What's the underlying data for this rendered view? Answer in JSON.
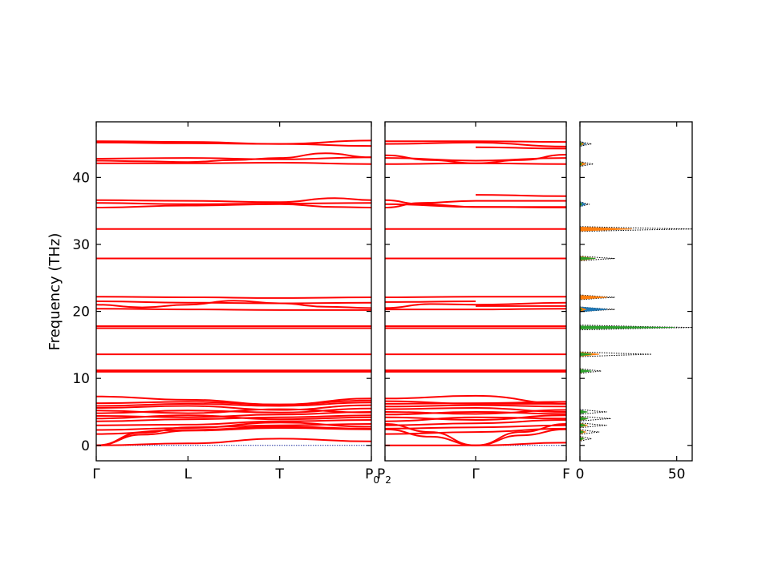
{
  "chart_data": {
    "type": "line",
    "ylabel": "Frequency (THz)",
    "ylim": [
      -2.3,
      48.3
    ],
    "yticks": [
      0,
      10,
      20,
      30,
      40
    ],
    "panels": [
      {
        "name": "band-path-1",
        "xlim": [
          0,
          3
        ],
        "xticks": [
          {
            "pos": 0,
            "label": "Γ"
          },
          {
            "pos": 1,
            "label": "L"
          },
          {
            "pos": 2,
            "label": "T"
          },
          {
            "pos": 3,
            "label": "P",
            "sub": "0"
          }
        ],
        "flat_bands": [
          11.2,
          11.0,
          13.6,
          17.5,
          17.8,
          27.9,
          32.3
        ],
        "dispersive_bands": [
          {
            "x": [
              0,
              1,
              2,
              3
            ],
            "y": [
              45.4,
              45.3,
              45.0,
              45.5
            ]
          },
          {
            "x": [
              0,
              1,
              2,
              3
            ],
            "y": [
              45.2,
              45.1,
              45.0,
              44.7
            ]
          },
          {
            "x": [
              0,
              1,
              2,
              3
            ],
            "y": [
              42.8,
              42.9,
              42.7,
              43.0
            ]
          },
          {
            "x": [
              0,
              0.5,
              1,
              1.5,
              2,
              2.5,
              3
            ],
            "y": [
              42.5,
              42.4,
              42.3,
              42.6,
              42.9,
              43.6,
              43.0
            ]
          },
          {
            "x": [
              0,
              1,
              2,
              3
            ],
            "y": [
              42.1,
              42.1,
              42.2,
              42.0
            ]
          },
          {
            "x": [
              0,
              1,
              2,
              2.6,
              3
            ],
            "y": [
              36.6,
              36.5,
              36.3,
              36.9,
              36.6
            ]
          },
          {
            "x": [
              0,
              1,
              2,
              3
            ],
            "y": [
              36.2,
              36.0,
              36.1,
              36.2
            ]
          },
          {
            "x": [
              0,
              1,
              2,
              2.6,
              3
            ],
            "y": [
              35.5,
              35.8,
              36.0,
              35.6,
              35.5
            ]
          },
          {
            "x": [
              0,
              1,
              2,
              3
            ],
            "y": [
              22.2,
              22.1,
              22.0,
              22.1
            ]
          },
          {
            "x": [
              0,
              1,
              2,
              3
            ],
            "y": [
              21.5,
              21.3,
              21.2,
              21.3
            ]
          },
          {
            "x": [
              0,
              0.5,
              1,
              1.5,
              2,
              2.5,
              3
            ],
            "y": [
              21.0,
              20.6,
              21.0,
              21.6,
              21.2,
              20.7,
              20.5
            ]
          },
          {
            "x": [
              0,
              1,
              2,
              3
            ],
            "y": [
              20.4,
              20.3,
              20.2,
              20.2
            ]
          },
          {
            "x": [
              0,
              1,
              2,
              3
            ],
            "y": [
              0,
              0.3,
              1.0,
              0.6
            ]
          },
          {
            "x": [
              0,
              0.5,
              1,
              2,
              3
            ],
            "y": [
              0,
              1.6,
              2.2,
              2.6,
              2.4
            ]
          },
          {
            "x": [
              0,
              0.5,
              1,
              2,
              3
            ],
            "y": [
              0,
              1.9,
              2.7,
              3.0,
              3.2
            ]
          },
          {
            "x": [
              0,
              1,
              2,
              3
            ],
            "y": [
              1.7,
              2.3,
              2.8,
              2.5
            ]
          },
          {
            "x": [
              0,
              1,
              2,
              3
            ],
            "y": [
              2.3,
              2.6,
              3.4,
              2.8
            ]
          },
          {
            "x": [
              0,
              1,
              2,
              3
            ],
            "y": [
              3.0,
              3.1,
              3.6,
              3.8
            ]
          },
          {
            "x": [
              0,
              1,
              2,
              3
            ],
            "y": [
              3.6,
              3.9,
              4.2,
              4.5
            ]
          },
          {
            "x": [
              0,
              1,
              2,
              3
            ],
            "y": [
              4.0,
              4.5,
              3.9,
              4.2
            ]
          },
          {
            "x": [
              0,
              1,
              2,
              3
            ],
            "y": [
              4.4,
              4.2,
              4.6,
              5.0
            ]
          },
          {
            "x": [
              0,
              1,
              2,
              3
            ],
            "y": [
              4.8,
              5.2,
              4.9,
              5.5
            ]
          },
          {
            "x": [
              0,
              1,
              2,
              3
            ],
            "y": [
              5.2,
              4.8,
              5.4,
              4.9
            ]
          },
          {
            "x": [
              0,
              1,
              2,
              3
            ],
            "y": [
              5.6,
              5.9,
              5.3,
              6.0
            ]
          },
          {
            "x": [
              0,
              1,
              2,
              3
            ],
            "y": [
              5.9,
              6.2,
              5.9,
              6.4
            ]
          },
          {
            "x": [
              0,
              1,
              2,
              3
            ],
            "y": [
              6.3,
              6.5,
              6.1,
              6.7
            ]
          },
          {
            "x": [
              0,
              1,
              2,
              3
            ],
            "y": [
              7.3,
              6.8,
              6.1,
              7.0
            ]
          }
        ]
      },
      {
        "name": "band-path-2",
        "xlim": [
          0,
          2
        ],
        "xticks": [
          {
            "pos": 0,
            "label": "P",
            "sub": "2"
          },
          {
            "pos": 1,
            "label": "Γ"
          },
          {
            "pos": 2,
            "label": "F"
          }
        ],
        "flat_bands": [
          11.2,
          11.0,
          13.6,
          17.5,
          17.8,
          27.9,
          32.3
        ],
        "dispersive_bands": [
          {
            "x": [
              0,
              1,
              2
            ],
            "y": [
              45.4,
              45.4,
              45.3
            ]
          },
          {
            "x": [
              0,
              1,
              2
            ],
            "y": [
              45.0,
              45.2,
              44.6
            ]
          },
          {
            "x": [
              1,
              2
            ],
            "y": [
              44.5,
              44.3
            ]
          },
          {
            "x": [
              0,
              1,
              2
            ],
            "y": [
              42.9,
              42.5,
              42.9
            ]
          },
          {
            "x": [
              0,
              0.5,
              1,
              1.5,
              2
            ],
            "y": [
              43.3,
              42.6,
              42.1,
              42.6,
              43.4
            ]
          },
          {
            "x": [
              0,
              1,
              2
            ],
            "y": [
              42.0,
              42.1,
              42.0
            ]
          },
          {
            "x": [
              1,
              2
            ],
            "y": [
              37.4,
              37.2
            ]
          },
          {
            "x": [
              0,
              0.4,
              1,
              2
            ],
            "y": [
              35.5,
              36.2,
              36.5,
              36.5
            ]
          },
          {
            "x": [
              0,
              0.4,
              1,
              2
            ],
            "y": [
              36.6,
              36.0,
              35.6,
              35.6
            ]
          },
          {
            "x": [
              0,
              1,
              2
            ],
            "y": [
              36.0,
              35.6,
              35.5
            ]
          },
          {
            "x": [
              0,
              1,
              2
            ],
            "y": [
              22.1,
              22.2,
              22.2
            ]
          },
          {
            "x": [
              0,
              1
            ],
            "y": [
              21.4,
              21.5
            ]
          },
          {
            "x": [
              0,
              0.5,
              1,
              2
            ],
            "y": [
              20.5,
              21.1,
              21.0,
              21.3
            ]
          },
          {
            "x": [
              1,
              2
            ],
            "y": [
              20.8,
              20.8
            ]
          },
          {
            "x": [
              0,
              1,
              2
            ],
            "y": [
              20.3,
              20.3,
              20.4
            ]
          },
          {
            "x": [
              0,
              1,
              2
            ],
            "y": [
              0,
              0,
              0.4
            ]
          },
          {
            "x": [
              0,
              0.5,
              1,
              1.5,
              2
            ],
            "y": [
              2.4,
              1.3,
              0,
              1.5,
              2.4
            ]
          },
          {
            "x": [
              0,
              0.5,
              1,
              1.5,
              2
            ],
            "y": [
              3.2,
              2.0,
              0,
              2.0,
              3.2
            ]
          },
          {
            "x": [
              0,
              1,
              2
            ],
            "y": [
              1.7,
              2.0,
              2.5
            ]
          },
          {
            "x": [
              0,
              1,
              2
            ],
            "y": [
              2.5,
              2.7,
              3.0
            ]
          },
          {
            "x": [
              0,
              1,
              2
            ],
            "y": [
              3.0,
              3.3,
              3.8
            ]
          },
          {
            "x": [
              0,
              1,
              2
            ],
            "y": [
              3.6,
              4.2,
              4.0
            ]
          },
          {
            "x": [
              0,
              1,
              2
            ],
            "y": [
              4.2,
              3.8,
              4.5
            ]
          },
          {
            "x": [
              0,
              1,
              2
            ],
            "y": [
              4.6,
              5.0,
              4.7
            ]
          },
          {
            "x": [
              0,
              1,
              2
            ],
            "y": [
              5.0,
              4.7,
              5.3
            ]
          },
          {
            "x": [
              0,
              1,
              2
            ],
            "y": [
              5.4,
              5.6,
              5.0
            ]
          },
          {
            "x": [
              0,
              1,
              2
            ],
            "y": [
              5.8,
              6.0,
              5.8
            ]
          },
          {
            "x": [
              0,
              1,
              2
            ],
            "y": [
              6.2,
              6.3,
              6.5
            ]
          },
          {
            "x": [
              0,
              1,
              2
            ],
            "y": [
              6.6,
              6.2,
              6.2
            ]
          },
          {
            "x": [
              0,
              1,
              2
            ],
            "y": [
              7.0,
              7.4,
              6.2
            ]
          }
        ]
      }
    ],
    "dos": {
      "xlim": [
        0,
        58
      ],
      "xticks": [
        0,
        50
      ],
      "peaks": [
        {
          "f": 45.0,
          "total": 6,
          "parts": [
            3,
            2,
            1
          ]
        },
        {
          "f": 42.0,
          "total": 7,
          "parts": [
            3,
            3,
            1
          ]
        },
        {
          "f": 36.0,
          "total": 5,
          "parts": [
            3,
            1,
            1
          ]
        },
        {
          "f": 32.3,
          "total": 58,
          "parts": [
            4,
            27,
            0
          ]
        },
        {
          "f": 27.9,
          "total": 18,
          "parts": [
            2,
            8,
            8
          ]
        },
        {
          "f": 22.1,
          "total": 18,
          "parts": [
            4,
            14,
            0
          ]
        },
        {
          "f": 20.3,
          "total": 18,
          "parts": [
            14,
            3,
            1
          ]
        },
        {
          "f": 17.6,
          "total": 58,
          "parts": [
            2,
            3,
            49
          ]
        },
        {
          "f": 13.6,
          "total": 37,
          "parts": [
            2,
            10,
            6
          ]
        },
        {
          "f": 11.1,
          "total": 11,
          "parts": [
            1,
            3,
            6
          ]
        },
        {
          "f": 5.0,
          "total": 14,
          "parts": [
            3,
            3,
            4
          ]
        },
        {
          "f": 4.0,
          "total": 16,
          "parts": [
            4,
            4,
            4
          ]
        },
        {
          "f": 3.0,
          "total": 14,
          "parts": [
            3,
            4,
            3
          ]
        },
        {
          "f": 2.0,
          "total": 10,
          "parts": [
            2,
            3,
            2
          ]
        },
        {
          "f": 1.0,
          "total": 6,
          "parts": [
            1,
            2,
            2
          ]
        }
      ]
    },
    "colors": {
      "band": "#ff0000",
      "zero_line": "#1f2f9f",
      "dos_parts": [
        "#1f77b4",
        "#ff7f0e",
        "#2ca02c"
      ],
      "dos_total": "#000000"
    }
  }
}
